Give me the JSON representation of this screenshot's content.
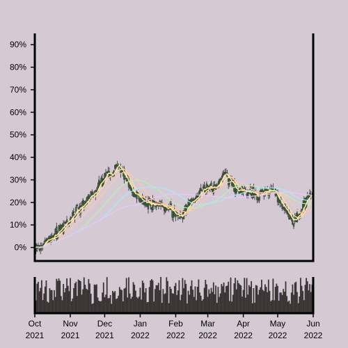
{
  "chart_data": {
    "type": "candlestick",
    "title": "",
    "xlabel": "",
    "ylabel": "",
    "ylim": [
      -0.06,
      0.95
    ],
    "y_ticks": [
      0,
      0.1,
      0.2,
      0.3,
      0.4,
      0.5,
      0.6,
      0.7,
      0.8,
      0.9
    ],
    "y_tick_labels": [
      "0%",
      "10%",
      "20%",
      "30%",
      "40%",
      "50%",
      "60%",
      "70%",
      "80%",
      "90%"
    ],
    "x_range": [
      "2021-10-01",
      "2022-06-01"
    ],
    "x_ticks": [
      {
        "date": "2021-10-01",
        "month": "Oct",
        "year": "2021"
      },
      {
        "date": "2021-11-01",
        "month": "Nov",
        "year": "2021"
      },
      {
        "date": "2021-12-01",
        "month": "Dec",
        "year": "2021"
      },
      {
        "date": "2022-01-01",
        "month": "Jan",
        "year": "2022"
      },
      {
        "date": "2022-02-01",
        "month": "Feb",
        "year": "2022"
      },
      {
        "date": "2022-03-01",
        "month": "Mar",
        "year": "2022"
      },
      {
        "date": "2022-04-01",
        "month": "Apr",
        "year": "2022"
      },
      {
        "date": "2022-05-01",
        "month": "May",
        "year": "2022"
      },
      {
        "date": "2022-06-01",
        "month": "Jun",
        "year": "2022"
      }
    ],
    "close_path": [
      [
        "2021-10-01",
        0.01
      ],
      [
        "2021-10-05",
        0.0
      ],
      [
        "2021-10-10",
        0.01
      ],
      [
        "2021-10-15",
        0.05
      ],
      [
        "2021-10-20",
        0.06
      ],
      [
        "2021-10-25",
        0.09
      ],
      [
        "2021-10-31",
        0.12
      ],
      [
        "2021-11-05",
        0.15
      ],
      [
        "2021-11-10",
        0.18
      ],
      [
        "2021-11-15",
        0.21
      ],
      [
        "2021-11-20",
        0.24
      ],
      [
        "2021-11-25",
        0.27
      ],
      [
        "2021-11-30",
        0.3
      ],
      [
        "2021-12-05",
        0.32
      ],
      [
        "2021-12-10",
        0.35
      ],
      [
        "2021-12-15",
        0.34
      ],
      [
        "2021-12-20",
        0.3
      ],
      [
        "2021-12-25",
        0.25
      ],
      [
        "2021-12-31",
        0.22
      ],
      [
        "2022-01-05",
        0.21
      ],
      [
        "2022-01-10",
        0.19
      ],
      [
        "2022-01-15",
        0.19
      ],
      [
        "2022-01-20",
        0.18
      ],
      [
        "2022-01-25",
        0.17
      ],
      [
        "2022-01-31",
        0.15
      ],
      [
        "2022-02-05",
        0.14
      ],
      [
        "2022-02-10",
        0.17
      ],
      [
        "2022-02-15",
        0.2
      ],
      [
        "2022-02-20",
        0.23
      ],
      [
        "2022-02-25",
        0.26
      ],
      [
        "2022-03-01",
        0.27
      ],
      [
        "2022-03-05",
        0.26
      ],
      [
        "2022-03-10",
        0.28
      ],
      [
        "2022-03-15",
        0.32
      ],
      [
        "2022-03-20",
        0.29
      ],
      [
        "2022-03-25",
        0.26
      ],
      [
        "2022-03-31",
        0.25
      ],
      [
        "2022-04-05",
        0.26
      ],
      [
        "2022-04-10",
        0.24
      ],
      [
        "2022-04-15",
        0.23
      ],
      [
        "2022-04-20",
        0.25
      ],
      [
        "2022-04-25",
        0.24
      ],
      [
        "2022-04-30",
        0.22
      ],
      [
        "2022-05-05",
        0.18
      ],
      [
        "2022-05-10",
        0.14
      ],
      [
        "2022-05-15",
        0.12
      ],
      [
        "2022-05-20",
        0.15
      ],
      [
        "2022-05-25",
        0.2
      ],
      [
        "2022-05-31",
        0.24
      ]
    ],
    "moving_averages": [
      {
        "color": "#fff2a8",
        "width": 1.5,
        "window": 5
      },
      {
        "color": "#ffd9a0",
        "width": 1.5,
        "window": 10
      },
      {
        "color": "#ffc7a8",
        "width": 1.3,
        "window": 20
      },
      {
        "color": "#b8f0b0",
        "width": 1.2,
        "window": 40
      },
      {
        "color": "#a8e8ff",
        "width": 1.2,
        "window": 60
      },
      {
        "color": "#e8c8ff",
        "width": 1.2,
        "window": 90
      }
    ],
    "colors": {
      "background": "#d5cad4",
      "candle_body": "#3f5f3a",
      "candle_wick": "#2a2a2a",
      "volume_bar": "#3a3434",
      "axis": "#000000"
    },
    "volume_range": [
      0,
      1
    ],
    "grid": false,
    "legend": "none"
  }
}
